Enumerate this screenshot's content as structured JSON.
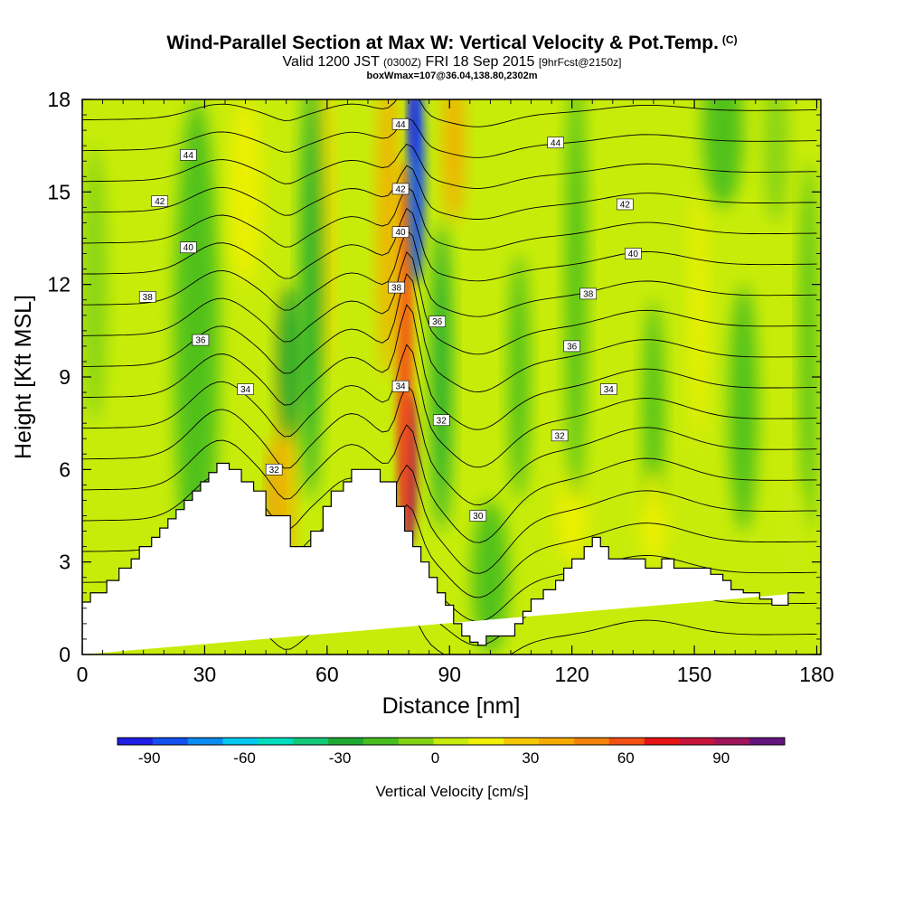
{
  "header": {
    "title": "Wind-Parallel Section at Max W: Vertical Velocity & Pot.Temp.",
    "copyright": "(C)",
    "valid_prefix": "Valid 1200 JST",
    "valid_zulu": "(0300Z)",
    "valid_date": "FRI 18 Sep 2015",
    "forecast": "[9hrFcst@2150z]",
    "box_info": "boxWmax=107@36.04,138.80,2302m"
  },
  "chart_data": {
    "type": "heatmap",
    "title": "Wind-Parallel Section at Max W: Vertical Velocity & Pot.Temp.",
    "xlabel": "Distance [nm]",
    "ylabel": "Height [Kft MSL]",
    "xlim": [
      0,
      181
    ],
    "ylim": [
      0,
      18
    ],
    "xticks": [
      0,
      30,
      60,
      90,
      120,
      150,
      180
    ],
    "yticks": [
      0,
      3,
      6,
      9,
      12,
      15,
      18
    ],
    "grid": false,
    "colorbar": {
      "label": "Vertical Velocity [cm/s]",
      "tick_values": [
        -90,
        -60,
        -30,
        0,
        30,
        60,
        90
      ],
      "range": [
        -100,
        110
      ],
      "colors": [
        "#1e1ee6",
        "#1450f0",
        "#0a8cf0",
        "#00c8f0",
        "#00dcbe",
        "#14c878",
        "#1eaa32",
        "#46be1e",
        "#82d214",
        "#c8ec0a",
        "#f0f000",
        "#f5c800",
        "#f5aa00",
        "#f5820a",
        "#f55014",
        "#e61414",
        "#c8143c",
        "#a0145a",
        "#64147d"
      ]
    },
    "terrain_profile": {
      "x": [
        0,
        2,
        2,
        6,
        6,
        9,
        9,
        12,
        12,
        14,
        14,
        17,
        17,
        19,
        19,
        21,
        21,
        23,
        23,
        25,
        25,
        27,
        27,
        29,
        29,
        31,
        31,
        33,
        33,
        36,
        36,
        39,
        39,
        42,
        42,
        45,
        45,
        51,
        51,
        56,
        56,
        59,
        59,
        61,
        61,
        64,
        64,
        66,
        66,
        73,
        73,
        77,
        77,
        79,
        79,
        81,
        81,
        83,
        83,
        85,
        85,
        87,
        87,
        89,
        89,
        91,
        91,
        93,
        93,
        95,
        95,
        97,
        97,
        99,
        99,
        106,
        106,
        108,
        108,
        110,
        110,
        113,
        113,
        116,
        116,
        118,
        118,
        120,
        120,
        123,
        123,
        125,
        125,
        127,
        127,
        129,
        129,
        138,
        138,
        142,
        142,
        145,
        145,
        154,
        154,
        157,
        157,
        159,
        159,
        162,
        162,
        166,
        166,
        169,
        169,
        173,
        173,
        177,
        177,
        181
      ],
      "height_kft": [
        1.7,
        1.7,
        2,
        2,
        2.4,
        2.4,
        2.8,
        2.8,
        3.1,
        3.1,
        3.5,
        3.5,
        3.8,
        3.8,
        4.1,
        4.1,
        4.4,
        4.4,
        4.7,
        4.7,
        5,
        5,
        5.3,
        5.3,
        5.6,
        5.6,
        5.9,
        5.9,
        6.2,
        6.2,
        6,
        6,
        5.6,
        5.6,
        5.3,
        5.3,
        4.5,
        4.5,
        3.5,
        3.5,
        4,
        4,
        4.8,
        4.8,
        5.3,
        5.3,
        5.6,
        5.6,
        6,
        6,
        5.6,
        5.6,
        4.8,
        4.8,
        4,
        4,
        3.5,
        3.5,
        3,
        3,
        2.5,
        2.5,
        2,
        2,
        1.6,
        1.6,
        1,
        1,
        0.6,
        0.6,
        0.4,
        0.4,
        0.3,
        0.3,
        0.6,
        0.6,
        1,
        1,
        1.4,
        1.4,
        1.8,
        1.8,
        2.1,
        2.1,
        2.4,
        2.4,
        2.8,
        2.8,
        3.1,
        3.1,
        3.5,
        3.5,
        3.8,
        3.8,
        3.5,
        3.5,
        3.1,
        3.1,
        2.8,
        2.8,
        3.1,
        3.1,
        2.8,
        2.8,
        2.6,
        2.6,
        2.4,
        2.4,
        2.1,
        2.1,
        2,
        2,
        1.8,
        1.8,
        1.6,
        1.6,
        2,
        2
      ]
    },
    "velocity_field": [
      {
        "label": "far-left green band",
        "x": 3,
        "y": 12,
        "w": 6,
        "h": 9,
        "v": -10
      },
      {
        "label": "left green column",
        "x": 28,
        "y": 10,
        "w": 11,
        "h": 16,
        "v": -18
      },
      {
        "label": "left yellow ascent",
        "x": 40,
        "y": 15,
        "w": 8,
        "h": 6,
        "v": 15
      },
      {
        "label": "updraft at 47nm",
        "x": 47,
        "y": 5,
        "w": 3,
        "h": 4,
        "v": 45
      },
      {
        "label": "updraft column 47nm",
        "x": 50,
        "y": 7,
        "w": 4,
        "h": 10,
        "v": 35
      },
      {
        "label": "downdraft 50nm",
        "x": 51,
        "y": 9.5,
        "w": 6,
        "h": 5,
        "v": -30
      },
      {
        "label": "upper orange band 58nm",
        "x": 59,
        "y": 14,
        "w": 4,
        "h": 10,
        "v": 30
      },
      {
        "label": "green band 55-63nm",
        "x": 56,
        "y": 12,
        "w": 5,
        "h": 14,
        "v": -25
      },
      {
        "label": "core updraft 80nm",
        "x": 80,
        "y": 6,
        "w": 4,
        "h": 5,
        "v": 95
      },
      {
        "label": "updraft column 80nm",
        "x": 79,
        "y": 10,
        "w": 4,
        "h": 12,
        "v": 55
      },
      {
        "label": "upper orange band 75nm",
        "x": 75,
        "y": 14,
        "w": 5,
        "h": 10,
        "v": 40
      },
      {
        "label": "strong downdraft 81nm",
        "x": 82,
        "y": 15.5,
        "w": 4,
        "h": 7,
        "v": -85
      },
      {
        "label": "upper downdraft 81nm",
        "x": 81,
        "y": 17.5,
        "w": 2,
        "h": 3,
        "v": -90
      },
      {
        "label": "green band 85-90nm",
        "x": 88,
        "y": 9,
        "w": 5,
        "h": 10,
        "v": -25
      },
      {
        "label": "upper updraft 90nm",
        "x": 91,
        "y": 16.5,
        "w": 5,
        "h": 5,
        "v": 35
      },
      {
        "label": "valley sink 100nm",
        "x": 100,
        "y": 2.5,
        "w": 9,
        "h": 5,
        "v": -12
      },
      {
        "label": "lower yellow 118nm",
        "x": 120,
        "y": 4.5,
        "w": 7,
        "h": 3,
        "v": 12
      },
      {
        "label": "green column 107nm",
        "x": 107,
        "y": 9,
        "w": 5,
        "h": 8,
        "v": -12
      },
      {
        "label": "green column 122nm",
        "x": 121,
        "y": 12,
        "w": 5,
        "h": 14,
        "v": -12
      },
      {
        "label": "green column 140nm",
        "x": 140,
        "y": 8,
        "w": 5,
        "h": 7,
        "v": -22
      },
      {
        "label": "yellow column 149nm",
        "x": 151,
        "y": 11,
        "w": 4,
        "h": 8,
        "v": 18
      },
      {
        "label": "lower yellow 140nm",
        "x": 140,
        "y": 4.5,
        "w": 6,
        "h": 3,
        "v": 15
      },
      {
        "label": "green column 163nm",
        "x": 162,
        "y": 8,
        "w": 7,
        "h": 8,
        "v": -20
      },
      {
        "label": "upper green 155nm",
        "x": 157,
        "y": 17,
        "w": 10,
        "h": 5,
        "v": -20
      },
      {
        "label": "upper green 168nm",
        "x": 170,
        "y": 16.5,
        "w": 6,
        "h": 5,
        "v": -10
      },
      {
        "label": "right green column 178nm",
        "x": 178,
        "y": 10,
        "w": 4,
        "h": 12,
        "v": -15
      },
      {
        "label": "right lower yellow 173nm",
        "x": 174,
        "y": 4,
        "w": 6,
        "h": 3,
        "v": 10
      }
    ],
    "theta_contours": {
      "units": "K (offset, labels as printed)",
      "levels": [
        28,
        29,
        30,
        31,
        32,
        33,
        34,
        35,
        36,
        37,
        38,
        39,
        40,
        41,
        42,
        43,
        44,
        45
      ],
      "labeled": [
        {
          "label": "44",
          "x": 26,
          "y": 16.2
        },
        {
          "label": "42",
          "x": 19,
          "y": 14.7
        },
        {
          "label": "40",
          "x": 26,
          "y": 13.2
        },
        {
          "label": "38",
          "x": 16,
          "y": 11.6
        },
        {
          "label": "36",
          "x": 29,
          "y": 10.2
        },
        {
          "label": "34",
          "x": 40,
          "y": 8.6
        },
        {
          "label": "32",
          "x": 47,
          "y": 6
        },
        {
          "label": "44",
          "x": 78,
          "y": 17.2
        },
        {
          "label": "42",
          "x": 78,
          "y": 15.1
        },
        {
          "label": "40",
          "x": 78,
          "y": 13.7
        },
        {
          "label": "38",
          "x": 77,
          "y": 11.9
        },
        {
          "label": "36",
          "x": 87,
          "y": 10.8
        },
        {
          "label": "34",
          "x": 78,
          "y": 8.7
        },
        {
          "label": "32",
          "x": 88,
          "y": 7.6
        },
        {
          "label": "30",
          "x": 97,
          "y": 4.5
        },
        {
          "label": "44",
          "x": 116,
          "y": 16.6
        },
        {
          "label": "42",
          "x": 133,
          "y": 14.6
        },
        {
          "label": "40",
          "x": 135,
          "y": 13
        },
        {
          "label": "38",
          "x": 124,
          "y": 11.7
        },
        {
          "label": "36",
          "x": 120,
          "y": 10
        },
        {
          "label": "34",
          "x": 129,
          "y": 8.6
        },
        {
          "label": "32",
          "x": 117,
          "y": 7.1
        }
      ]
    }
  }
}
